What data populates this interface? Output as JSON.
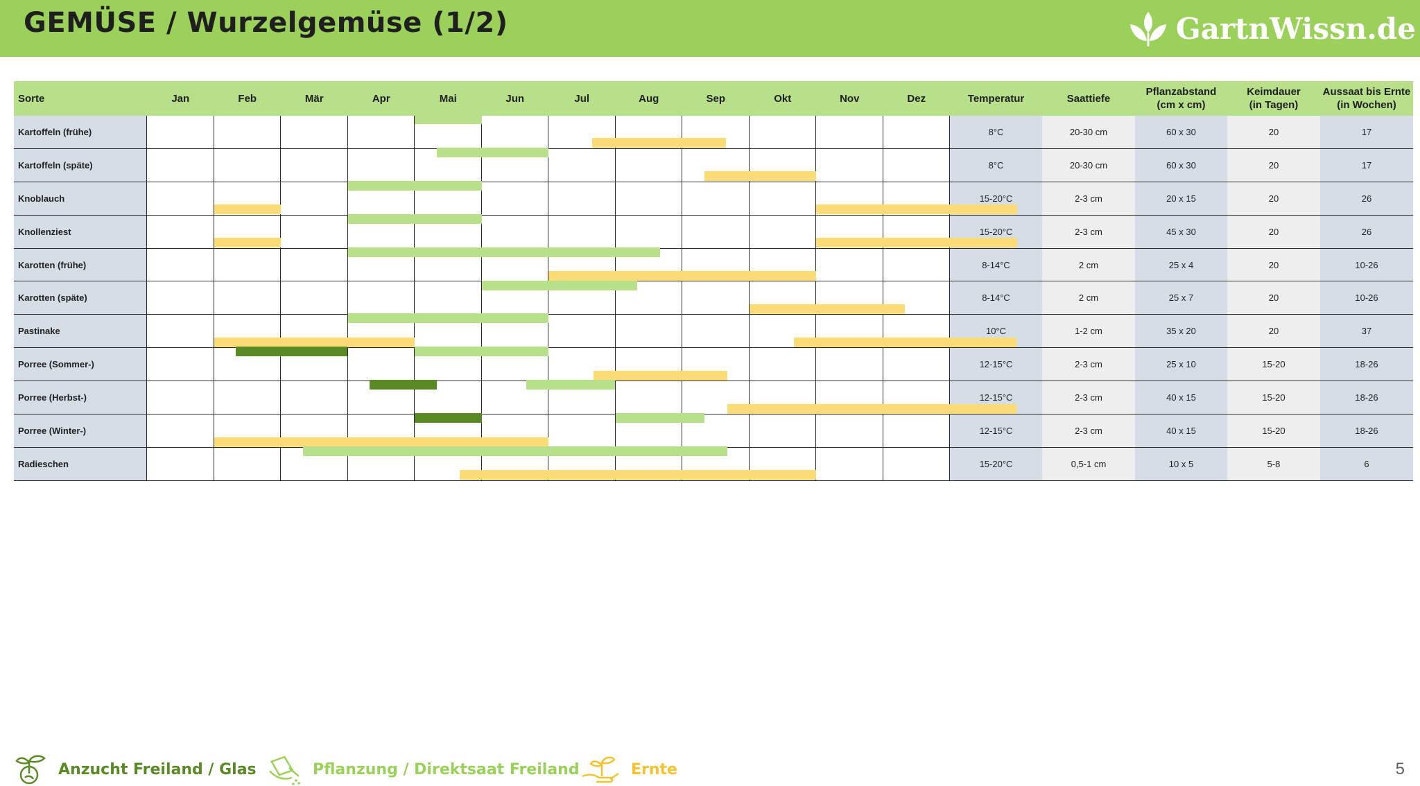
{
  "header": {
    "title": "GEMÜSE / Wurzelgemüse (1/2)",
    "logo_text": "GartnWissn.de"
  },
  "table": {
    "col_sorte": "Sorte",
    "months": [
      "Jan",
      "Feb",
      "Mär",
      "Apr",
      "Mai",
      "Jun",
      "Jul",
      "Aug",
      "Sep",
      "Okt",
      "Nov",
      "Dez"
    ],
    "data_headers": [
      {
        "l1": "Temperatur",
        "l2": ""
      },
      {
        "l1": "Saattiefe",
        "l2": ""
      },
      {
        "l1": "Pflanzabstand",
        "l2": "(cm x cm)"
      },
      {
        "l1": "Keimdauer",
        "l2": "(in Tagen)"
      },
      {
        "l1": "Aussaat bis Ernte",
        "l2": "(in Wochen)"
      }
    ],
    "rows": [
      {
        "name": "Kartoffeln (frühe)",
        "values": [
          "8°C",
          "20-30 cm",
          "60 x 30",
          "20",
          "17"
        ],
        "bars": [
          {
            "type": "p",
            "from": 4.0,
            "to": 5.0
          },
          {
            "type": "e",
            "from": 6.65,
            "to": 8.65
          }
        ]
      },
      {
        "name": "Kartoffeln (späte)",
        "values": [
          "8°C",
          "20-30 cm",
          "60 x 30",
          "20",
          "17"
        ],
        "bars": [
          {
            "type": "p",
            "from": 4.33,
            "to": 6.0
          },
          {
            "type": "e",
            "from": 8.33,
            "to": 10.0
          }
        ]
      },
      {
        "name": "Knoblauch",
        "values": [
          "15-20°C",
          "2-3 cm",
          "20 x 15",
          "20",
          "26"
        ],
        "bars": [
          {
            "type": "p",
            "from": 3.0,
            "to": 5.0
          },
          {
            "type": "e",
            "from": 1.0,
            "to": 2.0
          },
          {
            "type": "e",
            "from": 10.0,
            "to": 13.0
          }
        ]
      },
      {
        "name": "Knollenziest",
        "values": [
          "15-20°C",
          "2-3 cm",
          "45 x 30",
          "20",
          "26"
        ],
        "bars": [
          {
            "type": "p",
            "from": 3.0,
            "to": 5.0
          },
          {
            "type": "e",
            "from": 1.0,
            "to": 2.0
          },
          {
            "type": "e",
            "from": 10.0,
            "to": 13.0
          }
        ]
      },
      {
        "name": "Karotten (frühe)",
        "values": [
          "8-14°C",
          "2 cm",
          "25 x 4",
          "20",
          "10-26"
        ],
        "bars": [
          {
            "type": "p",
            "from": 3.0,
            "to": 7.67
          },
          {
            "type": "e",
            "from": 6.0,
            "to": 10.0
          }
        ]
      },
      {
        "name": "Karotten (späte)",
        "values": [
          "8-14°C",
          "2 cm",
          "25 x 7",
          "20",
          "10-26"
        ],
        "bars": [
          {
            "type": "p",
            "from": 5.0,
            "to": 7.33
          },
          {
            "type": "e",
            "from": 9.0,
            "to": 11.33
          }
        ]
      },
      {
        "name": "Pastinake",
        "values": [
          "10°C",
          "1-2 cm",
          "35 x 20",
          "20",
          "37"
        ],
        "bars": [
          {
            "type": "p",
            "from": 3.0,
            "to": 6.0
          },
          {
            "type": "e",
            "from": 1.0,
            "to": 4.0
          },
          {
            "type": "e",
            "from": 9.67,
            "to": 13.0
          }
        ]
      },
      {
        "name": "Porree (Sommer-)",
        "values": [
          "12-15°C",
          "2-3 cm",
          "25 x 10",
          "15-20",
          "18-26"
        ],
        "bars": [
          {
            "type": "a",
            "from": 1.33,
            "to": 3.0
          },
          {
            "type": "p",
            "from": 4.0,
            "to": 6.0
          },
          {
            "type": "e",
            "from": 6.67,
            "to": 8.67
          }
        ]
      },
      {
        "name": "Porree (Herbst-)",
        "values": [
          "12-15°C",
          "2-3 cm",
          "40 x 15",
          "15-20",
          "18-26"
        ],
        "bars": [
          {
            "type": "a",
            "from": 3.33,
            "to": 4.33
          },
          {
            "type": "p",
            "from": 5.67,
            "to": 7.0
          },
          {
            "type": "e",
            "from": 8.67,
            "to": 13.0
          }
        ]
      },
      {
        "name": "Porree (Winter-)",
        "values": [
          "12-15°C",
          "2-3 cm",
          "40 x 15",
          "15-20",
          "18-26"
        ],
        "bars": [
          {
            "type": "a",
            "from": 4.0,
            "to": 5.0
          },
          {
            "type": "p",
            "from": 7.0,
            "to": 8.33
          },
          {
            "type": "e",
            "from": 1.0,
            "to": 6.0
          }
        ]
      },
      {
        "name": "Radieschen",
        "values": [
          "15-20°C",
          "0,5-1 cm",
          "10 x 5",
          "5-8",
          "6"
        ],
        "bars": [
          {
            "type": "p",
            "from": 2.33,
            "to": 8.67
          },
          {
            "type": "e",
            "from": 4.67,
            "to": 10.0
          }
        ]
      }
    ]
  },
  "legend": {
    "items": [
      {
        "label": "Anzucht Freiland / Glas",
        "color": "#5a8a25",
        "icon": "seedling-icon"
      },
      {
        "label": "Pflanzung / Direktsaat Freiland",
        "color": "#9bd15a",
        "icon": "watering-can-icon"
      },
      {
        "label": "Ernte",
        "color": "#f5c230",
        "icon": "hand-plant-icon"
      }
    ]
  },
  "page_number": "5"
}
